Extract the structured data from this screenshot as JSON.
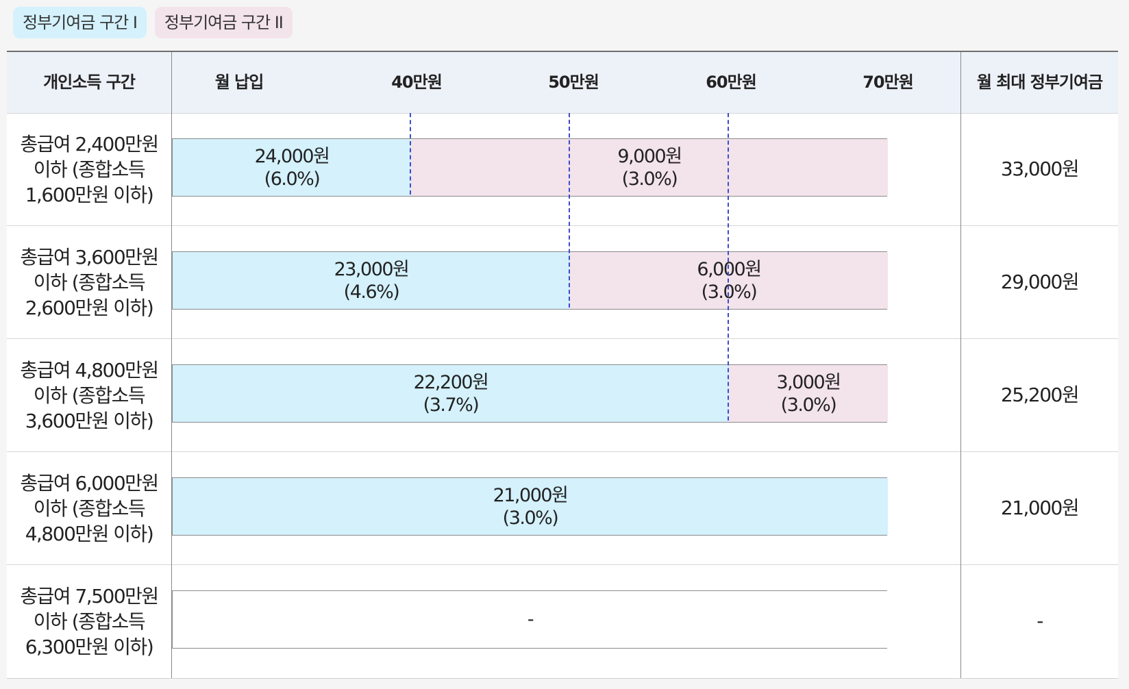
{
  "legend": [
    {
      "label": "정부기여금 구간 I",
      "color": "#d4f1fc"
    },
    {
      "label": "정부기여금 구간 II",
      "color": "#f3e3ea"
    }
  ],
  "header": {
    "income": "개인소득 구간",
    "payment": "월 납입",
    "ticks": [
      "40만원",
      "50만원",
      "60만원",
      "70만원"
    ],
    "max": "월 최대 정부기여금"
  },
  "chart_data": {
    "type": "bar",
    "x_axis_ticks": [
      "40만원",
      "50만원",
      "60만원",
      "70만원"
    ],
    "x_range": [
      25,
      70
    ],
    "rows": [
      {
        "income": "총급여 2,400만원\n이하 (종합소득\n1,600만원 이하)",
        "segments": [
          {
            "tier": "I",
            "start": 25,
            "end": 40,
            "amount": "24,000원",
            "rate": "(6.0%)"
          },
          {
            "tier": "II",
            "start": 40,
            "end": 70,
            "amount": "9,000원",
            "rate": "(3.0%)"
          }
        ],
        "max": "33,000원"
      },
      {
        "income": "총급여 3,600만원\n이하 (종합소득\n2,600만원 이하)",
        "segments": [
          {
            "tier": "I",
            "start": 25,
            "end": 50,
            "amount": "23,000원",
            "rate": "(4.6%)"
          },
          {
            "tier": "II",
            "start": 50,
            "end": 70,
            "amount": "6,000원",
            "rate": "(3.0%)"
          }
        ],
        "max": "29,000원"
      },
      {
        "income": "총급여 4,800만원\n이하 (종합소득\n3,600만원 이하)",
        "segments": [
          {
            "tier": "I",
            "start": 25,
            "end": 60,
            "amount": "22,200원",
            "rate": "(3.7%)"
          },
          {
            "tier": "II",
            "start": 60,
            "end": 70,
            "amount": "3,000원",
            "rate": "(3.0%)"
          }
        ],
        "max": "25,200원"
      },
      {
        "income": "총급여 6,000만원\n이하 (종합소득\n4,800만원 이하)",
        "segments": [
          {
            "tier": "I",
            "start": 25,
            "end": 70,
            "amount": "21,000원",
            "rate": "(3.0%)"
          }
        ],
        "max": "21,000원"
      },
      {
        "income": "총급여 7,500만원\n이하 (종합소득\n6,300만원 이하)",
        "segments": [
          {
            "tier": "none",
            "start": 25,
            "end": 70,
            "amount": "-",
            "rate": ""
          }
        ],
        "max": "-"
      }
    ]
  }
}
